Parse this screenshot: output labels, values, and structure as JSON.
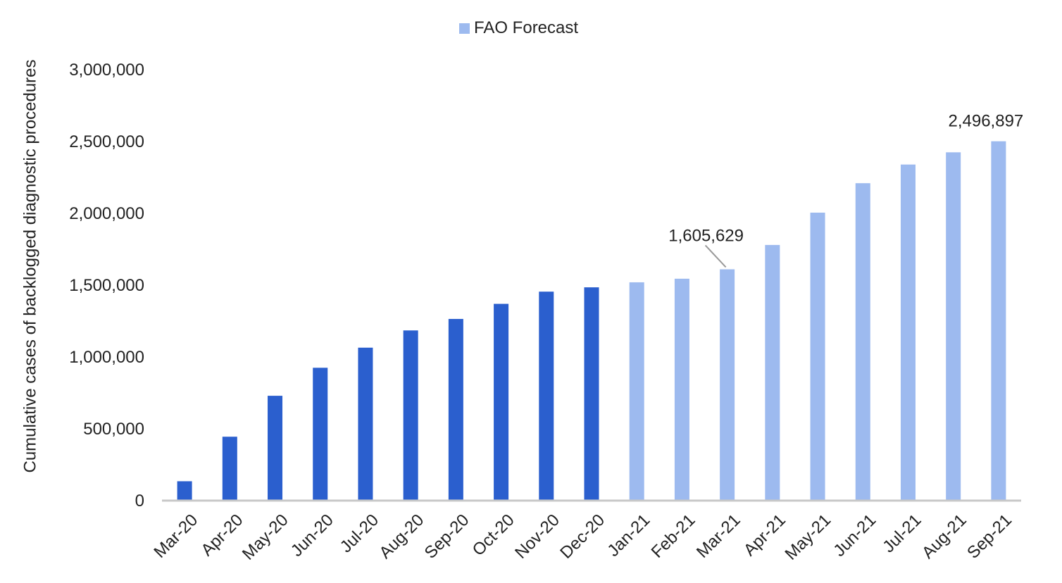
{
  "chart_data": {
    "type": "bar",
    "ylabel": "Cumulative cases of backlogged diagnostic procedures",
    "xlabel": "",
    "ylim": [
      0,
      3000000
    ],
    "yticks": [
      0,
      500000,
      1000000,
      1500000,
      2000000,
      2500000,
      3000000
    ],
    "ytick_labels": [
      "0",
      "500,000",
      "1,000,000",
      "1,500,000",
      "2,000,000",
      "2,500,000",
      "3,000,000"
    ],
    "legend": {
      "label": "FAO Forecast",
      "placement": "top-center"
    },
    "categories": [
      "Mar-20",
      "Apr-20",
      "May-20",
      "Jun-20",
      "Jul-20",
      "Aug-20",
      "Sep-20",
      "Oct-20",
      "Nov-20",
      "Dec-20",
      "Jan-21",
      "Feb-21",
      "Mar-21",
      "Apr-21",
      "May-21",
      "Jun-21",
      "Jul-21",
      "Aug-21",
      "Sep-21"
    ],
    "values": [
      130000,
      440000,
      725000,
      920000,
      1060000,
      1180000,
      1260000,
      1365000,
      1450000,
      1480000,
      1515000,
      1540000,
      1605629,
      1775000,
      2000000,
      2205000,
      2335000,
      2420000,
      2496897
    ],
    "forecast": [
      false,
      false,
      false,
      false,
      false,
      false,
      false,
      false,
      false,
      false,
      true,
      true,
      true,
      true,
      true,
      true,
      true,
      true,
      true
    ],
    "annotations": [
      {
        "category": "Mar-21",
        "text": "1,605,629",
        "leader": true
      },
      {
        "category": "Sep-21",
        "text": "2,496,897",
        "leader": false
      }
    ],
    "colors": {
      "actual": "#2b5fce",
      "forecast": "#9dbaef",
      "axis": "#c8c8c8",
      "text": "#222222",
      "leader": "#999999"
    }
  }
}
